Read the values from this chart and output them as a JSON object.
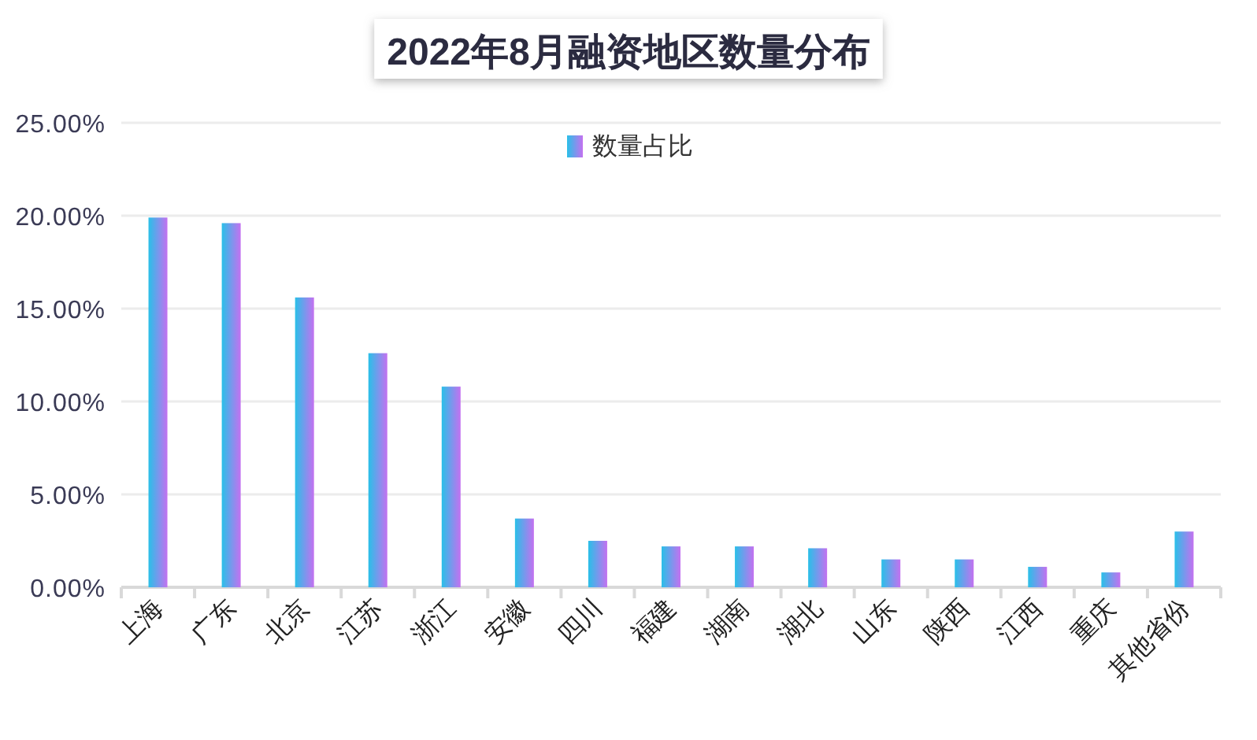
{
  "chart_data": {
    "type": "bar",
    "title": "2022年8月融资地区数量分布",
    "categories": [
      "上海",
      "广东",
      "北京",
      "江苏",
      "浙江",
      "安徽",
      "四川",
      "福建",
      "湖南",
      "湖北",
      "山东",
      "陕西",
      "江西",
      "重庆",
      "其他省份"
    ],
    "series": [
      {
        "name": "数量占比",
        "color": "#29c0e8",
        "values": [
          19.9,
          19.6,
          15.6,
          12.6,
          10.8,
          3.7,
          2.5,
          2.2,
          2.2,
          2.1,
          1.5,
          1.5,
          1.1,
          0.8,
          3.0
        ]
      }
    ],
    "ylim": [
      0,
      25
    ],
    "yticks": [
      {
        "value": 0,
        "label": "0.00%"
      },
      {
        "value": 5,
        "label": "5.00%"
      },
      {
        "value": 10,
        "label": "10.00%"
      },
      {
        "value": 15,
        "label": "15.00%"
      },
      {
        "value": 20,
        "label": "20.00%"
      },
      {
        "value": 25,
        "label": "25.00%"
      }
    ],
    "grid": "y",
    "legend": "top"
  }
}
